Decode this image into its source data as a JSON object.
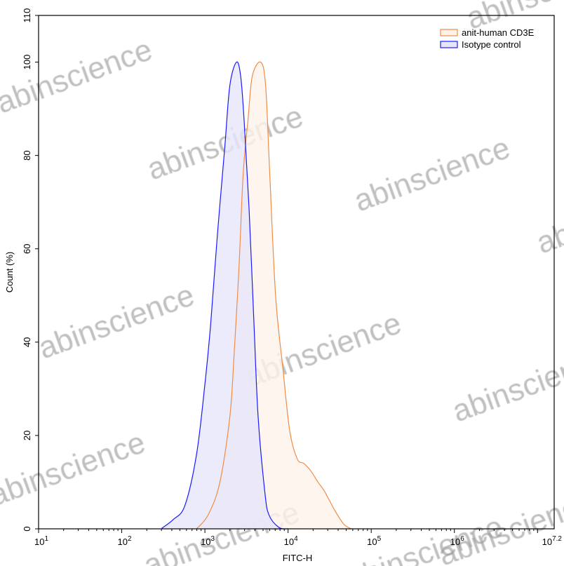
{
  "chart_data": {
    "type": "area",
    "title": "",
    "xlabel": "FITC-H",
    "ylabel": "Count (%)",
    "xscale": "log",
    "xlim": [
      10,
      15848932
    ],
    "ylim": [
      0,
      110
    ],
    "yticks": [
      0,
      20,
      40,
      60,
      80,
      100,
      110
    ],
    "xtick_labels": [
      {
        "base": "10",
        "exp": "1",
        "value": 10
      },
      {
        "base": "10",
        "exp": "2",
        "value": 100
      },
      {
        "base": "10",
        "exp": "3",
        "value": 1000
      },
      {
        "base": "10",
        "exp": "4",
        "value": 10000
      },
      {
        "base": "10",
        "exp": "5",
        "value": 100000
      },
      {
        "base": "10",
        "exp": "6",
        "value": 1000000
      },
      {
        "base": "10",
        "exp": "7.2",
        "value": 15848932
      }
    ],
    "grid": false,
    "legend_placement": "top-right",
    "series": [
      {
        "name": "anit-human CD3E",
        "stroke": "#f08c46",
        "fill": "#fdf3ea",
        "x": [
          794,
          1096,
          1514,
          1995,
          2239,
          2570,
          2884,
          3311,
          3715,
          4677,
          5370,
          6026,
          7079,
          8710,
          10470,
          12880,
          15490,
          18620,
          22910,
          27540,
          36310,
          46770,
          57540
        ],
        "y": [
          0,
          3,
          10,
          24,
          37,
          56,
          76,
          88,
          97,
          100,
          95,
          76,
          50,
          34,
          21,
          15,
          14,
          12.5,
          10,
          8,
          4,
          1,
          0
        ]
      },
      {
        "name": "Isotype control",
        "stroke": "#1a1aff",
        "fill": "#e6e6fa",
        "x": [
          302,
          417,
          575,
          794,
          1000,
          1175,
          1413,
          1738,
          1995,
          2399,
          2692,
          2951,
          3388,
          3890,
          4365,
          5248,
          5888,
          7762,
          10000
        ],
        "y": [
          0.1,
          2,
          5,
          16,
          31,
          44,
          63,
          82,
          95,
          100,
          97,
          88,
          69,
          44,
          24,
          8,
          3,
          0.3,
          0
        ]
      }
    ]
  },
  "watermark": {
    "text": "abinscience"
  }
}
